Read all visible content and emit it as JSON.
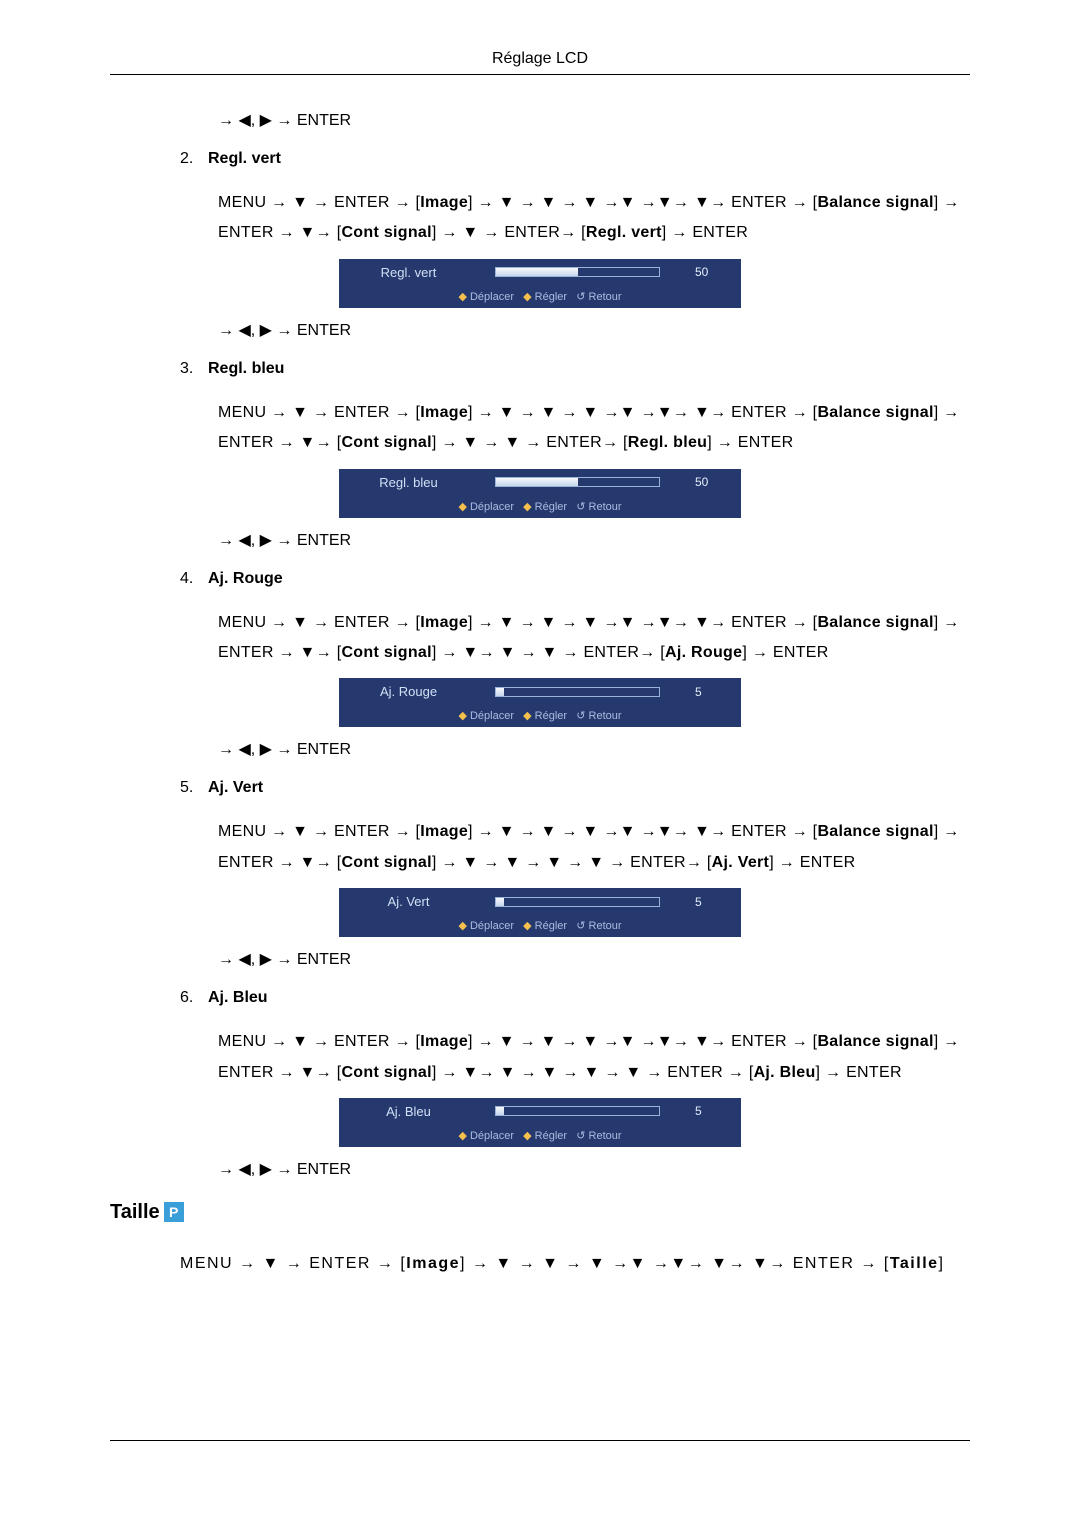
{
  "page_title": "Réglage LCD",
  "nav_line": "→ ◀, ▶ → ENTER",
  "osd_footer_parts": [
    "Déplacer",
    "Régler",
    "Retour"
  ],
  "sections": [
    {
      "num": "2.",
      "title": "Regl. vert",
      "path_segments": [
        "MENU → ▼ → ENTER → [",
        "Image",
        "] → ▼ → ▼ → ▼ →▼ →▼→ ▼→ ENTER → [",
        "Balance signal",
        "] → ENTER → ▼→ [",
        "Cont signal",
        "] → ▼ → ENTER→ [",
        "Regl. vert",
        "] → ENTER"
      ],
      "osd": {
        "label": "Regl. vert",
        "value": "50",
        "fill_pct": 50
      }
    },
    {
      "num": "3.",
      "title": "Regl. bleu",
      "path_segments": [
        "MENU → ▼ → ENTER → [",
        "Image",
        "] → ▼ → ▼ → ▼ →▼ →▼→ ▼→ ENTER → [",
        "Balance signal",
        "] → ENTER → ▼→ [",
        "Cont signal",
        "] → ▼ → ▼ → ENTER→ [",
        "Regl. bleu",
        "] → ENTER"
      ],
      "osd": {
        "label": "Regl. bleu",
        "value": "50",
        "fill_pct": 50
      }
    },
    {
      "num": "4.",
      "title": "Aj. Rouge",
      "path_segments": [
        "MENU → ▼ → ENTER → [",
        "Image",
        "] → ▼ → ▼ → ▼ →▼ →▼→ ▼→ ENTER → [",
        "Balance signal",
        "] → ENTER → ▼→ [",
        "Cont signal",
        "] → ▼→ ▼ → ▼ → ENTER→ [",
        "Aj. Rouge",
        "] → ENTER"
      ],
      "osd": {
        "label": "Aj. Rouge",
        "value": "5",
        "fill_pct": 5
      }
    },
    {
      "num": "5.",
      "title": "Aj. Vert",
      "path_segments": [
        "MENU → ▼ → ENTER → [",
        "Image",
        "] → ▼ → ▼ → ▼ →▼ →▼→ ▼→ ENTER → [",
        "Balance signal",
        "] → ENTER → ▼→ [",
        "Cont signal",
        "] → ▼ → ▼ → ▼ → ▼ → ENTER→ [",
        "Aj. Vert",
        "] → ENTER"
      ],
      "osd": {
        "label": "Aj. Vert",
        "value": "5",
        "fill_pct": 5
      }
    },
    {
      "num": "6.",
      "title": "Aj. Bleu",
      "path_segments": [
        "MENU → ▼ → ENTER → [",
        "Image",
        "] → ▼ → ▼ → ▼ →▼ →▼→ ▼→ ENTER → [",
        "Balance signal",
        "] → ENTER → ▼→ [",
        "Cont signal",
        "] → ▼→ ▼ → ▼ → ▼ → ▼ → ENTER → [",
        "Aj. Bleu",
        "] → ENTER"
      ],
      "osd": {
        "label": "Aj. Bleu",
        "value": "5",
        "fill_pct": 5
      }
    }
  ],
  "taille_heading": "Taille",
  "taille_path_segments": [
    "MENU → ▼ → ENTER → [",
    "Image",
    "] → ▼ → ▼ → ▼ →▼ →▼→ ▼→ ▼→ ENTER → [",
    "Taille",
    "]"
  ]
}
